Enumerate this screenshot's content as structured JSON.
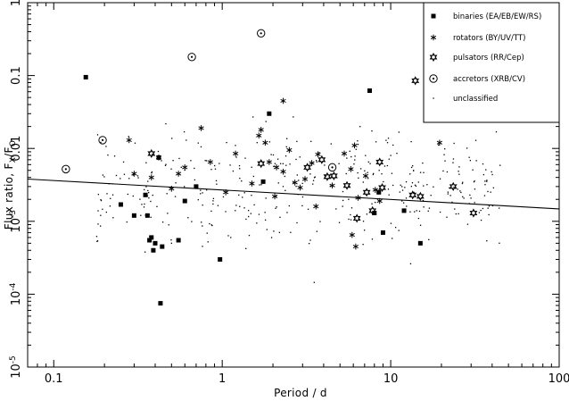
{
  "chart_data": {
    "type": "scatter",
    "title": "",
    "xlabel": "Period / d",
    "ylabel_parts": [
      "Flux ratio, F",
      "X",
      "/F",
      "O"
    ],
    "x_scale": "log",
    "y_scale": "log",
    "xlim": [
      0.07,
      100
    ],
    "ylim": [
      1e-05,
      1
    ],
    "x_ticks": [
      {
        "value": 0.1,
        "label": "0.1"
      },
      {
        "value": 1,
        "label": "1"
      },
      {
        "value": 10,
        "label": "10"
      },
      {
        "value": 100,
        "label": "100"
      }
    ],
    "y_ticks": [
      {
        "value": 1,
        "label": "1"
      },
      {
        "value": 0.1,
        "label": "0.1"
      },
      {
        "value": 0.01,
        "label": "0.01"
      },
      {
        "value": 0.001,
        "label": "10",
        "sup": "-3"
      },
      {
        "value": 0.0001,
        "label": "10",
        "sup": "-4"
      },
      {
        "value": 1e-05,
        "label": "10",
        "sup": "-5"
      }
    ],
    "legend_position": "top-right",
    "grid": false,
    "fit_line": {
      "x": [
        0.07,
        100
      ],
      "y": [
        0.0038,
        0.00148
      ]
    },
    "series": [
      {
        "name": "binaries (EA/EB/EW/RS)",
        "marker": "square",
        "points": [
          [
            0.155,
            0.095
          ],
          [
            0.25,
            0.0017
          ],
          [
            0.3,
            0.0012
          ],
          [
            0.35,
            0.0023
          ],
          [
            0.36,
            0.0012
          ],
          [
            0.37,
            0.00055
          ],
          [
            0.38,
            0.0006
          ],
          [
            0.39,
            0.0004
          ],
          [
            0.4,
            0.0005
          ],
          [
            0.42,
            0.0075
          ],
          [
            0.44,
            0.00045
          ],
          [
            0.43,
            7.5e-05
          ],
          [
            0.55,
            0.00055
          ],
          [
            0.6,
            0.0019
          ],
          [
            0.7,
            0.003
          ],
          [
            0.97,
            0.0003
          ],
          [
            1.75,
            0.0035
          ],
          [
            1.9,
            0.03
          ],
          [
            7.5,
            0.062
          ],
          [
            8,
            0.0013
          ],
          [
            8.5,
            0.0025
          ],
          [
            9,
            0.0007
          ],
          [
            12,
            0.0014
          ],
          [
            15,
            0.0005
          ]
        ]
      },
      {
        "name": "rotators (BY/UV/TT)",
        "marker": "asterisk",
        "points": [
          [
            0.28,
            0.013
          ],
          [
            0.3,
            0.0045
          ],
          [
            0.38,
            0.004
          ],
          [
            0.42,
            0.0075
          ],
          [
            0.5,
            0.0028
          ],
          [
            0.55,
            0.0045
          ],
          [
            0.6,
            0.0055
          ],
          [
            0.75,
            0.019
          ],
          [
            0.85,
            0.0065
          ],
          [
            1.05,
            0.0025
          ],
          [
            1.2,
            0.0085
          ],
          [
            1.5,
            0.0033
          ],
          [
            1.65,
            0.015
          ],
          [
            1.7,
            0.018
          ],
          [
            1.8,
            0.012
          ],
          [
            1.9,
            0.0065
          ],
          [
            2.1,
            0.0055
          ],
          [
            2.3,
            0.0048
          ],
          [
            2.5,
            0.0095
          ],
          [
            2.7,
            0.0034
          ],
          [
            2.3,
            0.045
          ],
          [
            3.1,
            0.0038
          ],
          [
            3.4,
            0.0063
          ],
          [
            3.7,
            0.0083
          ],
          [
            4.5,
            0.0031
          ],
          [
            5.3,
            0.0085
          ],
          [
            5.8,
            0.0052
          ],
          [
            6.1,
            0.011
          ],
          [
            6.4,
            0.0021
          ],
          [
            7.1,
            0.0042
          ],
          [
            8.1,
            0.0027
          ],
          [
            8.6,
            0.0019
          ],
          [
            5.9,
            0.00065
          ],
          [
            6.2,
            0.00045
          ],
          [
            19.5,
            0.012
          ],
          [
            2.05,
            0.0022
          ],
          [
            2.9,
            0.0029
          ],
          [
            3.6,
            0.0016
          ]
        ]
      },
      {
        "name": "pulsators (RR/Cep)",
        "marker": "star",
        "points": [
          [
            0.38,
            0.0085
          ],
          [
            1.7,
            0.0062
          ],
          [
            3.2,
            0.0055
          ],
          [
            3.9,
            0.007
          ],
          [
            4.2,
            0.0041
          ],
          [
            4.6,
            0.0042
          ],
          [
            5.5,
            0.0031
          ],
          [
            6.3,
            0.0011
          ],
          [
            7.2,
            0.0025
          ],
          [
            7.8,
            0.0014
          ],
          [
            8.6,
            0.0065
          ],
          [
            8.9,
            0.0029
          ],
          [
            13.5,
            0.0023
          ],
          [
            15,
            0.0022
          ],
          [
            23.5,
            0.003
          ],
          [
            31,
            0.0013
          ],
          [
            14,
            0.085
          ]
        ]
      },
      {
        "name": "accretors (XRB/CV)",
        "marker": "circle-dot",
        "points": [
          [
            0.118,
            0.0052
          ],
          [
            0.195,
            0.013
          ],
          [
            0.66,
            0.18
          ],
          [
            1.7,
            0.38
          ],
          [
            4.5,
            0.0055
          ]
        ]
      },
      {
        "name": "unclassified",
        "marker": "dot",
        "count": 400
      }
    ]
  }
}
